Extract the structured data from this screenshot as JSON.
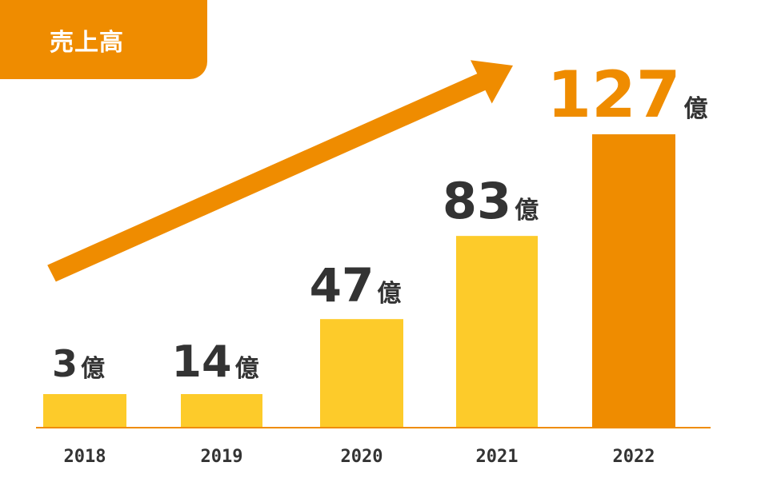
{
  "title": "売上高",
  "colors": {
    "accent": "#ef8c00",
    "bar": "#fdcb2a",
    "bar_highlight": "#ef8c00",
    "text": "#333333"
  },
  "chart_data": {
    "type": "bar",
    "title": "売上高",
    "categories": [
      "2018",
      "2019",
      "2020",
      "2021",
      "2022"
    ],
    "values": [
      3,
      14,
      47,
      83,
      127
    ],
    "unit": "億",
    "data_labels": [
      "3",
      "14",
      "47",
      "83",
      "127"
    ],
    "highlight_index": 4,
    "annotation": "upward trend arrow",
    "grid": false
  }
}
